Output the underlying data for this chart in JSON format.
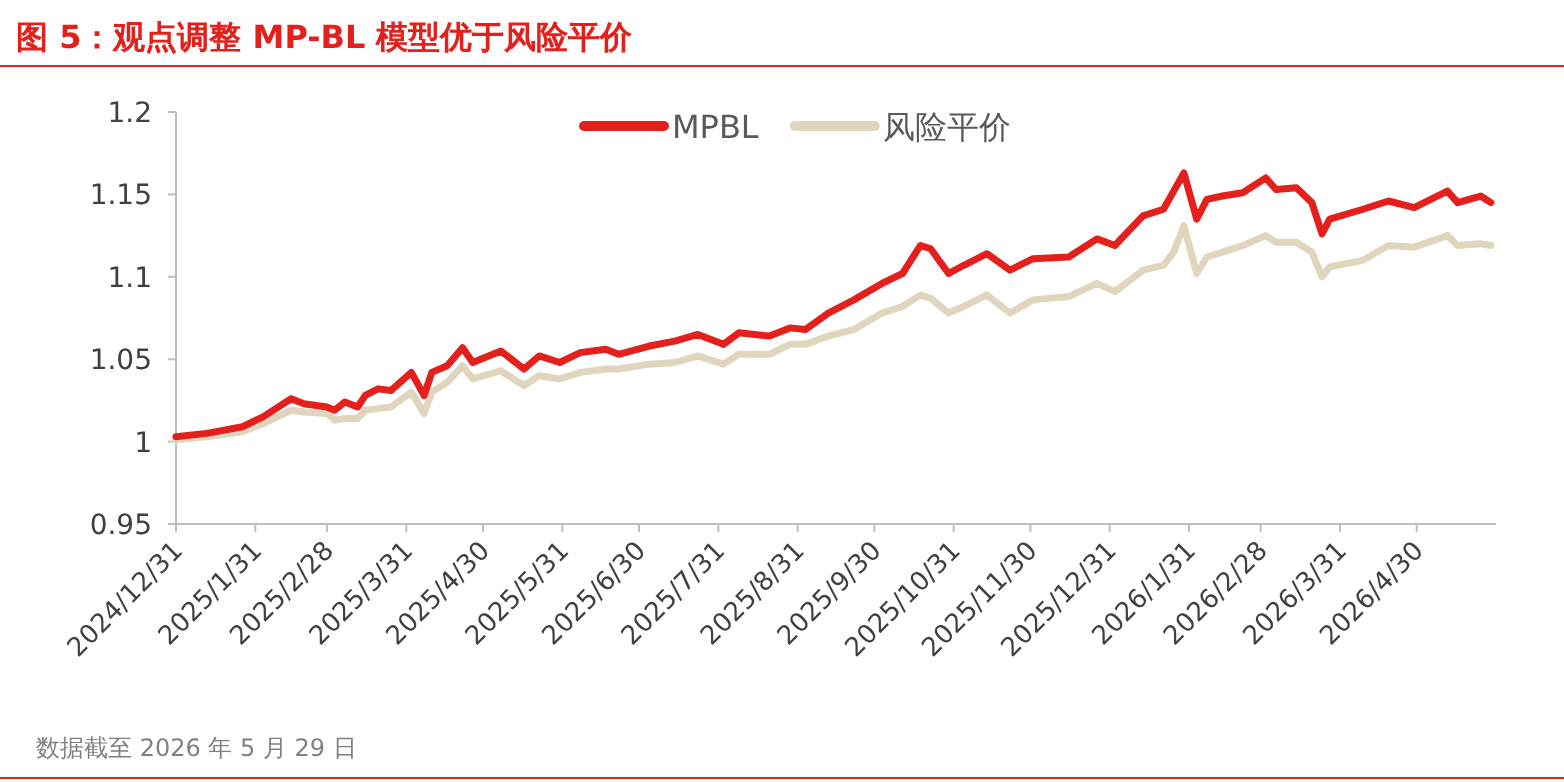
{
  "chart_data": {
    "type": "line",
    "title": "图 5：观点调整 MP-BL 模型优于风险平价",
    "x": [
      "2024-12-31",
      "2025-01-12",
      "2025-01-26",
      "2025-02-03",
      "2025-02-14",
      "2025-02-19",
      "2025-02-28",
      "2025-03-03",
      "2025-03-07",
      "2025-03-12",
      "2025-03-15",
      "2025-03-20",
      "2025-03-25",
      "2025-04-02",
      "2025-04-07",
      "2025-04-10",
      "2025-04-16",
      "2025-04-22",
      "2025-04-26",
      "2025-05-07",
      "2025-05-16",
      "2025-05-22",
      "2025-05-30",
      "2025-06-07",
      "2025-06-17",
      "2025-06-22",
      "2025-07-04",
      "2025-07-14",
      "2025-07-23",
      "2025-08-02",
      "2025-08-08",
      "2025-08-20",
      "2025-08-28",
      "2025-09-03",
      "2025-09-12",
      "2025-09-22",
      "2025-10-03",
      "2025-10-11",
      "2025-10-18",
      "2025-10-22",
      "2025-10-29",
      "2025-11-04",
      "2025-11-13",
      "2025-11-22",
      "2025-12-01",
      "2025-12-15",
      "2025-12-26",
      "2026-01-02",
      "2026-01-13",
      "2026-01-21",
      "2026-01-25",
      "2026-01-29",
      "2026-02-03",
      "2026-02-07",
      "2026-02-13",
      "2026-02-21",
      "2026-03-02",
      "2026-03-06",
      "2026-03-14",
      "2026-03-20",
      "2026-03-24",
      "2026-03-27",
      "2026-04-09",
      "2026-04-19",
      "2026-04-29",
      "2026-05-12",
      "2026-05-16",
      "2026-05-25",
      "2026-05-29"
    ],
    "series": [
      {
        "name": "MPBL",
        "color": "#e3201b",
        "values": [
          1.003,
          1.005,
          1.009,
          1.015,
          1.026,
          1.023,
          1.021,
          1.019,
          1.024,
          1.021,
          1.028,
          1.032,
          1.031,
          1.042,
          1.028,
          1.042,
          1.046,
          1.057,
          1.048,
          1.055,
          1.044,
          1.052,
          1.048,
          1.054,
          1.056,
          1.053,
          1.058,
          1.061,
          1.065,
          1.059,
          1.066,
          1.064,
          1.069,
          1.068,
          1.078,
          1.086,
          1.096,
          1.102,
          1.119,
          1.117,
          1.102,
          1.107,
          1.114,
          1.104,
          1.111,
          1.112,
          1.123,
          1.119,
          1.137,
          1.141,
          1.152,
          1.163,
          1.135,
          1.147,
          1.149,
          1.151,
          1.16,
          1.153,
          1.154,
          1.145,
          1.126,
          1.135,
          1.141,
          1.146,
          1.142,
          1.152,
          1.145,
          1.149,
          1.145
        ]
      },
      {
        "name": "风险平价",
        "color": "#e0d6bd",
        "values": [
          1.001,
          1.003,
          1.006,
          1.011,
          1.019,
          1.018,
          1.017,
          1.013,
          1.014,
          1.014,
          1.019,
          1.02,
          1.021,
          1.03,
          1.017,
          1.03,
          1.036,
          1.046,
          1.038,
          1.043,
          1.034,
          1.04,
          1.038,
          1.042,
          1.044,
          1.044,
          1.047,
          1.048,
          1.052,
          1.047,
          1.053,
          1.053,
          1.059,
          1.059,
          1.064,
          1.068,
          1.078,
          1.082,
          1.089,
          1.087,
          1.078,
          1.082,
          1.089,
          1.078,
          1.086,
          1.088,
          1.096,
          1.091,
          1.104,
          1.107,
          1.115,
          1.131,
          1.102,
          1.112,
          1.115,
          1.119,
          1.125,
          1.121,
          1.121,
          1.115,
          1.1,
          1.106,
          1.11,
          1.119,
          1.118,
          1.125,
          1.119,
          1.12,
          1.119
        ]
      }
    ],
    "xlim": [
      "2024-12-31",
      "2026-05-31"
    ],
    "xticks": [
      {
        "value": "2024-12-31",
        "label": "2024/12/31"
      },
      {
        "value": "2025-01-31",
        "label": "2025/1/31"
      },
      {
        "value": "2025-02-28",
        "label": "2025/2/28"
      },
      {
        "value": "2025-03-31",
        "label": "2025/3/31"
      },
      {
        "value": "2025-04-30",
        "label": "2025/4/30"
      },
      {
        "value": "2025-05-31",
        "label": "2025/5/31"
      },
      {
        "value": "2025-06-30",
        "label": "2025/6/30"
      },
      {
        "value": "2025-07-31",
        "label": "2025/7/31"
      },
      {
        "value": "2025-08-31",
        "label": "2025/8/31"
      },
      {
        "value": "2025-09-30",
        "label": "2025/9/30"
      },
      {
        "value": "2025-10-31",
        "label": "2025/10/31"
      },
      {
        "value": "2025-11-30",
        "label": "2025/11/30"
      },
      {
        "value": "2025-12-31",
        "label": "2025/12/31"
      },
      {
        "value": "2026-01-31",
        "label": "2026/1/31"
      },
      {
        "value": "2026-02-28",
        "label": "2026/2/28"
      },
      {
        "value": "2026-03-31",
        "label": "2026/3/31"
      },
      {
        "value": "2026-04-30",
        "label": "2026/4/30"
      }
    ],
    "ylim": [
      0.95,
      1.2
    ],
    "yticks": [
      0.95,
      1,
      1.05,
      1.1,
      1.15,
      1.2
    ],
    "legend": "top",
    "grid": false,
    "annotations": [
      "数据截至 2026 年 5 月 29 日"
    ]
  }
}
